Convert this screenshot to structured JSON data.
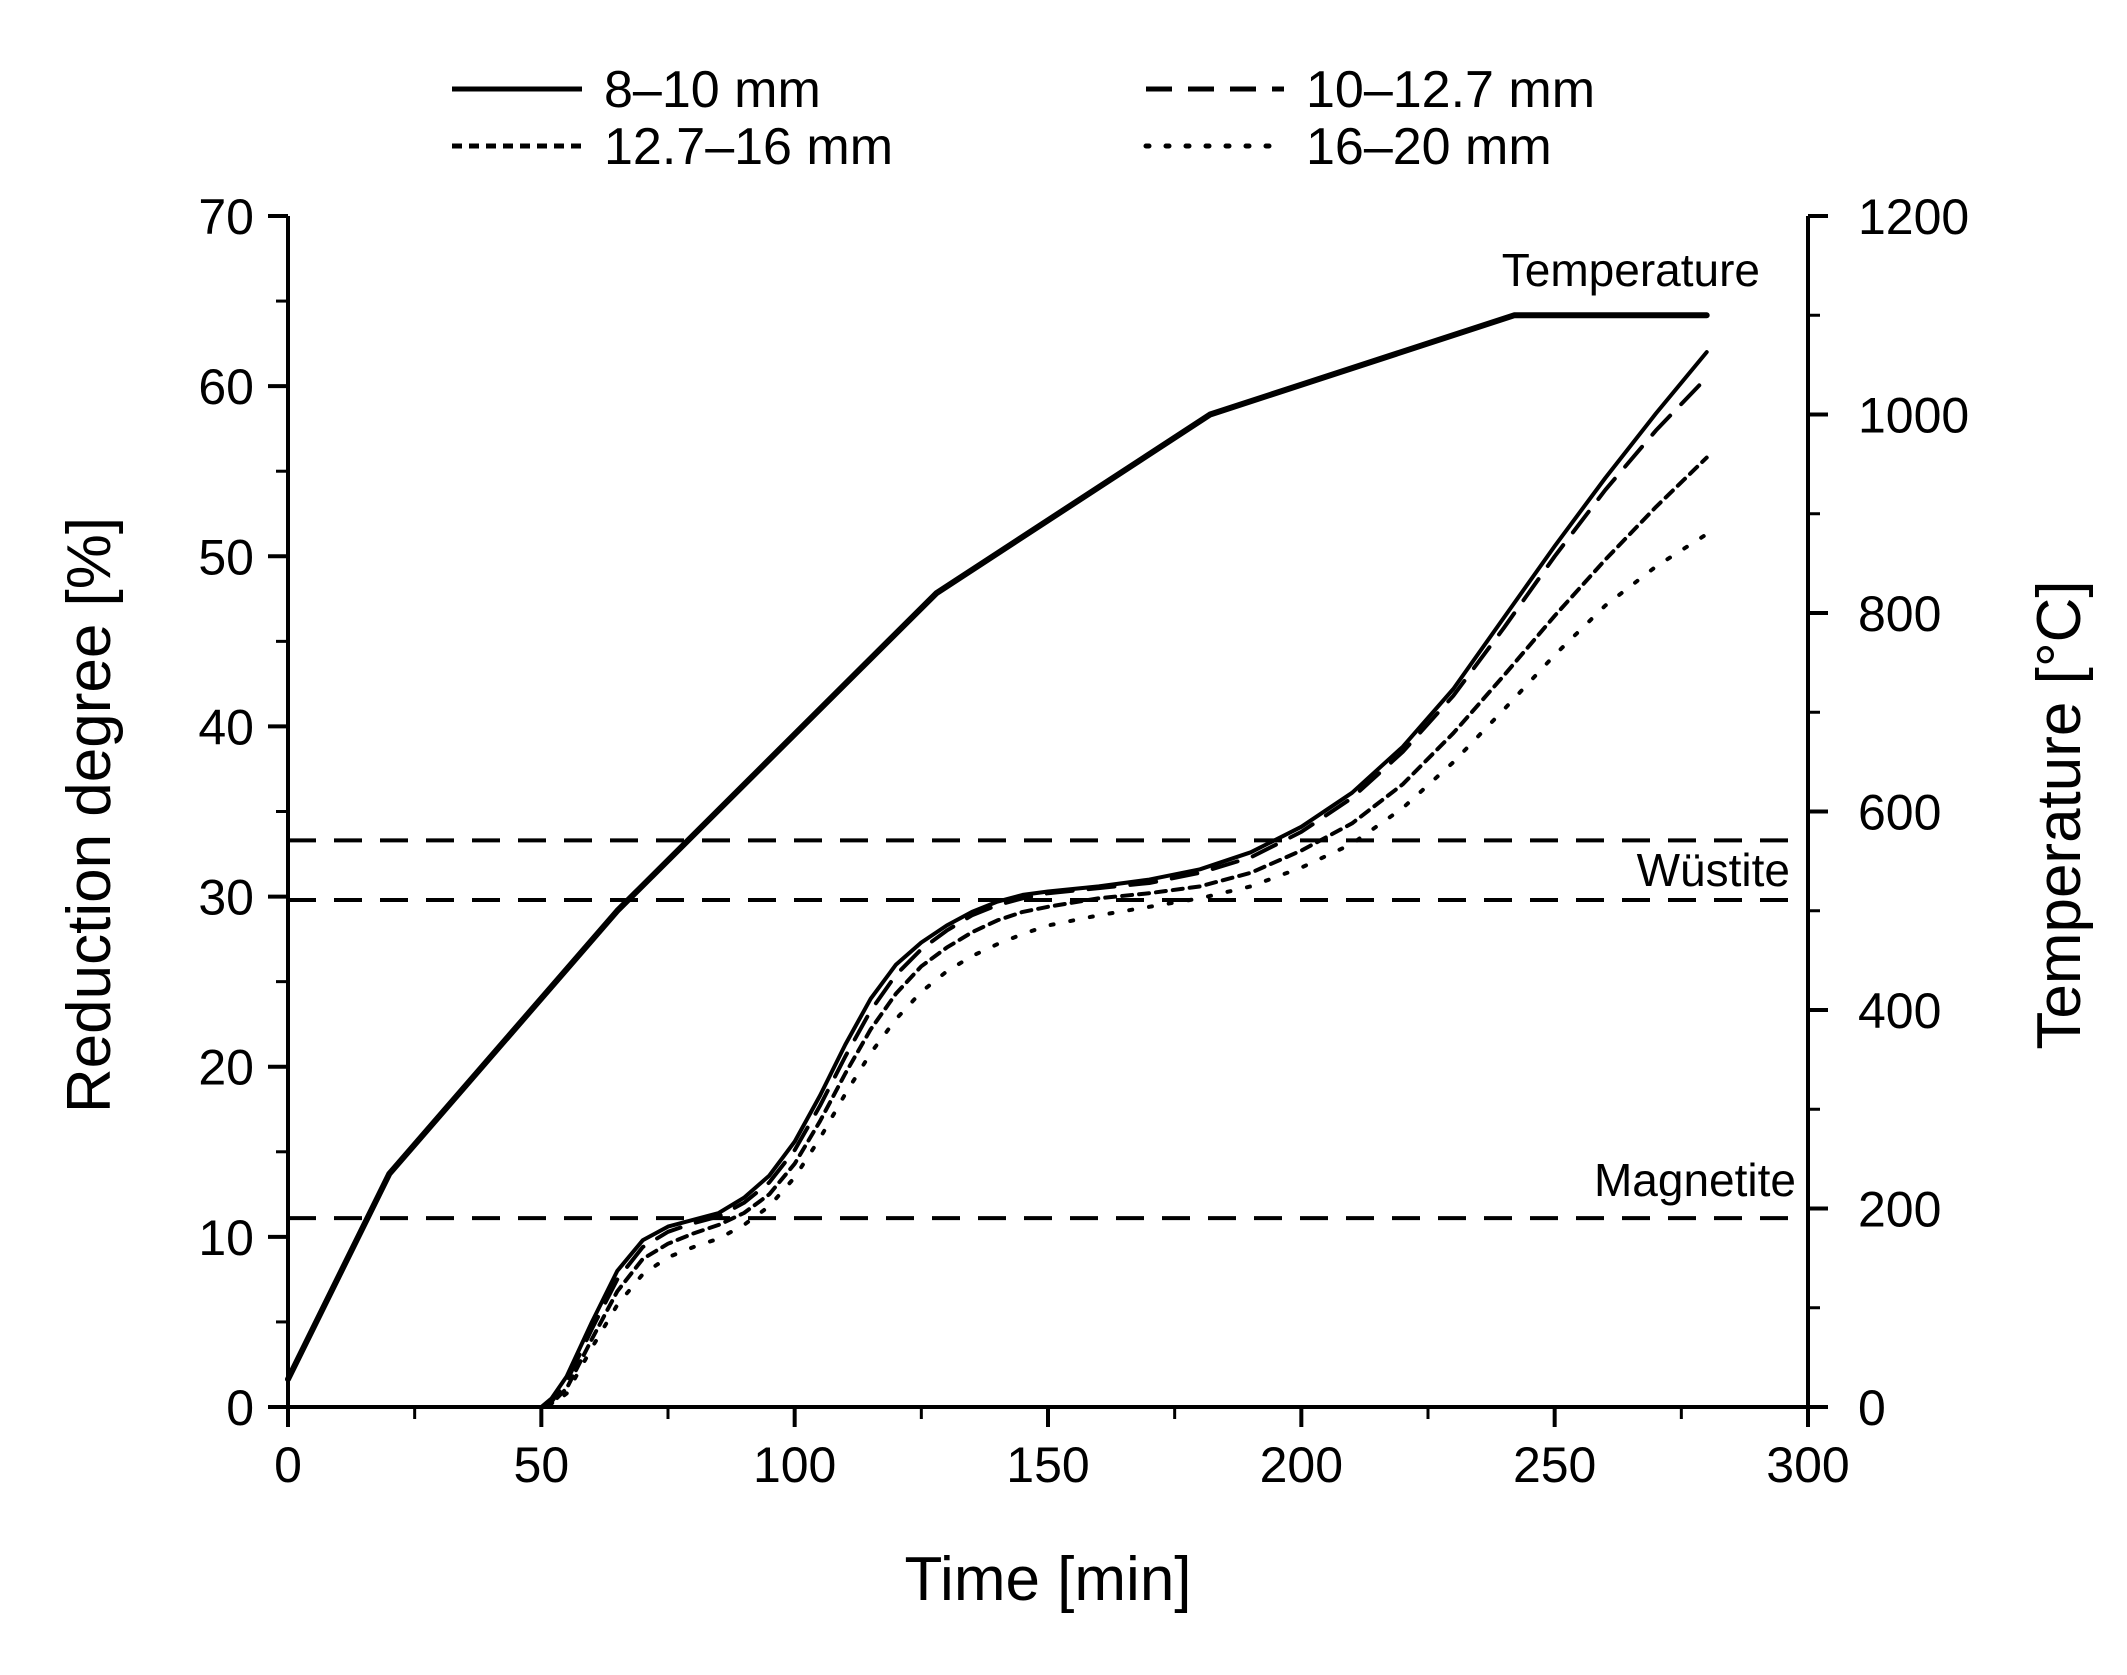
{
  "chart_data": {
    "type": "line",
    "xlabel": "Time [min]",
    "ylabel": "Reduction degree [%]",
    "y2label": "Temperature [°C]",
    "xlim": [
      0,
      300
    ],
    "ylim": [
      0,
      70
    ],
    "y2lim": [
      0,
      1200
    ],
    "xticks": [
      0,
      50,
      100,
      150,
      200,
      250,
      300
    ],
    "yticks": [
      0,
      10,
      20,
      30,
      40,
      50,
      60,
      70
    ],
    "y2ticks": [
      0,
      200,
      400,
      600,
      800,
      1000,
      1200
    ],
    "grid": false,
    "legend_position": "top",
    "series": [
      {
        "name": "8–10 mm",
        "axis": "left",
        "dash": "solid",
        "x": [
          0,
          50,
          52,
          55,
          60,
          65,
          70,
          75,
          80,
          85,
          90,
          95,
          100,
          105,
          110,
          115,
          120,
          125,
          130,
          135,
          140,
          145,
          150,
          160,
          170,
          180,
          190,
          200,
          210,
          220,
          230,
          240,
          250,
          260,
          270,
          280
        ],
        "values": [
          0,
          0,
          0.5,
          1.8,
          5.0,
          8.0,
          9.8,
          10.6,
          11.0,
          11.4,
          12.3,
          13.6,
          15.6,
          18.3,
          21.3,
          24.0,
          26.0,
          27.3,
          28.3,
          29.1,
          29.7,
          30.1,
          30.3,
          30.6,
          31.0,
          31.6,
          32.6,
          34.1,
          36.1,
          38.8,
          42.2,
          46.4,
          50.6,
          54.6,
          58.4,
          62.0
        ]
      },
      {
        "name": "10–12.7 mm",
        "axis": "left",
        "dash": "long-dash",
        "x": [
          0,
          50,
          52,
          55,
          60,
          65,
          70,
          75,
          80,
          85,
          90,
          95,
          100,
          105,
          110,
          115,
          120,
          125,
          130,
          135,
          140,
          145,
          150,
          160,
          170,
          180,
          190,
          200,
          210,
          220,
          230,
          240,
          250,
          260,
          270,
          280
        ],
        "values": [
          0,
          0,
          0.3,
          1.5,
          4.6,
          7.5,
          9.4,
          10.3,
          10.8,
          11.2,
          12.0,
          13.2,
          15.1,
          17.7,
          20.6,
          23.3,
          25.4,
          26.9,
          28.0,
          28.9,
          29.5,
          29.9,
          30.2,
          30.5,
          30.8,
          31.4,
          32.3,
          33.8,
          35.8,
          38.5,
          41.8,
          45.8,
          50.0,
          53.9,
          57.4,
          60.5
        ]
      },
      {
        "name": "12.7–16 mm",
        "axis": "left",
        "dash": "short-dash",
        "x": [
          0,
          50,
          52,
          55,
          60,
          65,
          70,
          75,
          80,
          85,
          90,
          95,
          100,
          105,
          110,
          115,
          120,
          125,
          130,
          135,
          140,
          145,
          150,
          160,
          170,
          180,
          190,
          200,
          210,
          220,
          230,
          240,
          250,
          260,
          270,
          280
        ],
        "values": [
          0,
          0,
          0.2,
          1.1,
          4.0,
          6.8,
          8.7,
          9.6,
          10.2,
          10.7,
          11.4,
          12.5,
          14.3,
          16.8,
          19.6,
          22.2,
          24.3,
          25.9,
          27.0,
          27.9,
          28.6,
          29.1,
          29.4,
          29.9,
          30.2,
          30.6,
          31.4,
          32.7,
          34.3,
          36.6,
          39.6,
          43.0,
          46.5,
          49.8,
          52.9,
          55.8
        ]
      },
      {
        "name": "16–20 mm",
        "axis": "left",
        "dash": "dotted",
        "x": [
          0,
          50,
          52,
          55,
          60,
          65,
          70,
          75,
          80,
          85,
          90,
          95,
          100,
          105,
          110,
          115,
          120,
          125,
          130,
          135,
          140,
          145,
          150,
          160,
          170,
          180,
          190,
          200,
          210,
          220,
          230,
          240,
          250,
          260,
          270,
          280
        ],
        "values": [
          0,
          0,
          0.1,
          0.8,
          3.5,
          6.0,
          7.8,
          8.8,
          9.4,
          9.9,
          10.7,
          11.8,
          13.5,
          15.8,
          18.4,
          20.8,
          22.8,
          24.4,
          25.6,
          26.5,
          27.2,
          27.8,
          28.3,
          28.9,
          29.4,
          29.9,
          30.6,
          31.7,
          33.1,
          35.2,
          37.9,
          41.0,
          44.2,
          47.1,
          49.4,
          51.3
        ]
      },
      {
        "name": "Temperature",
        "axis": "right",
        "dash": "solid",
        "x": [
          0,
          20,
          65,
          128,
          182,
          242,
          280
        ],
        "values": [
          28,
          235,
          500,
          820,
          1000,
          1100,
          1100
        ]
      }
    ],
    "reference_lines": [
      {
        "name": "Wüstite upper",
        "y": 33.3
      },
      {
        "name": "Wüstite lower",
        "y": 29.8
      },
      {
        "name": "Magnetite",
        "y": 11.1
      }
    ],
    "annotations": {
      "temperature": "Temperature",
      "wustite": "Wüstite",
      "magnetite": "Magnetite"
    }
  }
}
